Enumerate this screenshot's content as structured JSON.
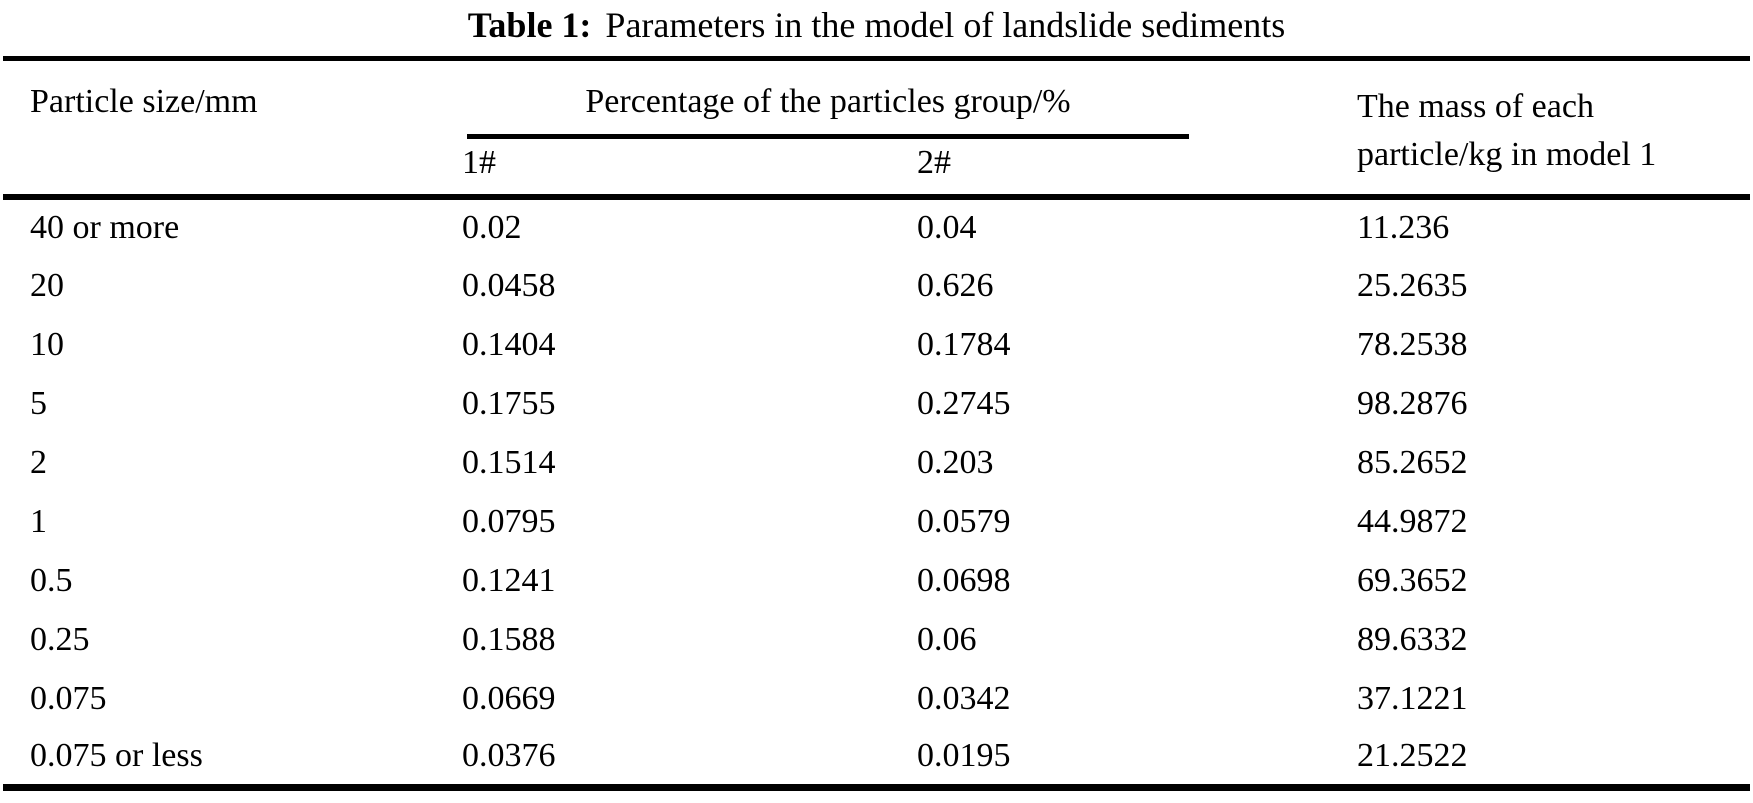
{
  "title": {
    "label": "Table 1:",
    "text": "Parameters in the model of landslide sediments"
  },
  "colors": {
    "text": "#000000",
    "background": "#ffffff",
    "rule": "#000000"
  },
  "table": {
    "columns": {
      "particle_size": "Particle size/mm",
      "percentage_group": "Percentage of the particles group/%",
      "sub1": "1#",
      "sub2": "2#",
      "mass": "The mass of each particle/kg in model 1"
    },
    "rows": [
      {
        "size": "40 or more",
        "p1": "0.02",
        "p2": "0.04",
        "mass": "11.236"
      },
      {
        "size": "20",
        "p1": "0.0458",
        "p2": "0.626",
        "mass": "25.2635"
      },
      {
        "size": "10",
        "p1": "0.1404",
        "p2": "0.1784",
        "mass": "78.2538"
      },
      {
        "size": "5",
        "p1": "0.1755",
        "p2": "0.2745",
        "mass": "98.2876"
      },
      {
        "size": "2",
        "p1": "0.1514",
        "p2": "0.203",
        "mass": "85.2652"
      },
      {
        "size": "1",
        "p1": "0.0795",
        "p2": "0.0579",
        "mass": "44.9872"
      },
      {
        "size": "0.5",
        "p1": "0.1241",
        "p2": "0.0698",
        "mass": "69.3652"
      },
      {
        "size": "0.25",
        "p1": "0.1588",
        "p2": "0.06",
        "mass": "89.6332"
      },
      {
        "size": "0.075",
        "p1": "0.0669",
        "p2": "0.0342",
        "mass": "37.1221"
      },
      {
        "size": "0.075 or less",
        "p1": "0.0376",
        "p2": "0.0195",
        "mass": "21.2522"
      }
    ]
  }
}
